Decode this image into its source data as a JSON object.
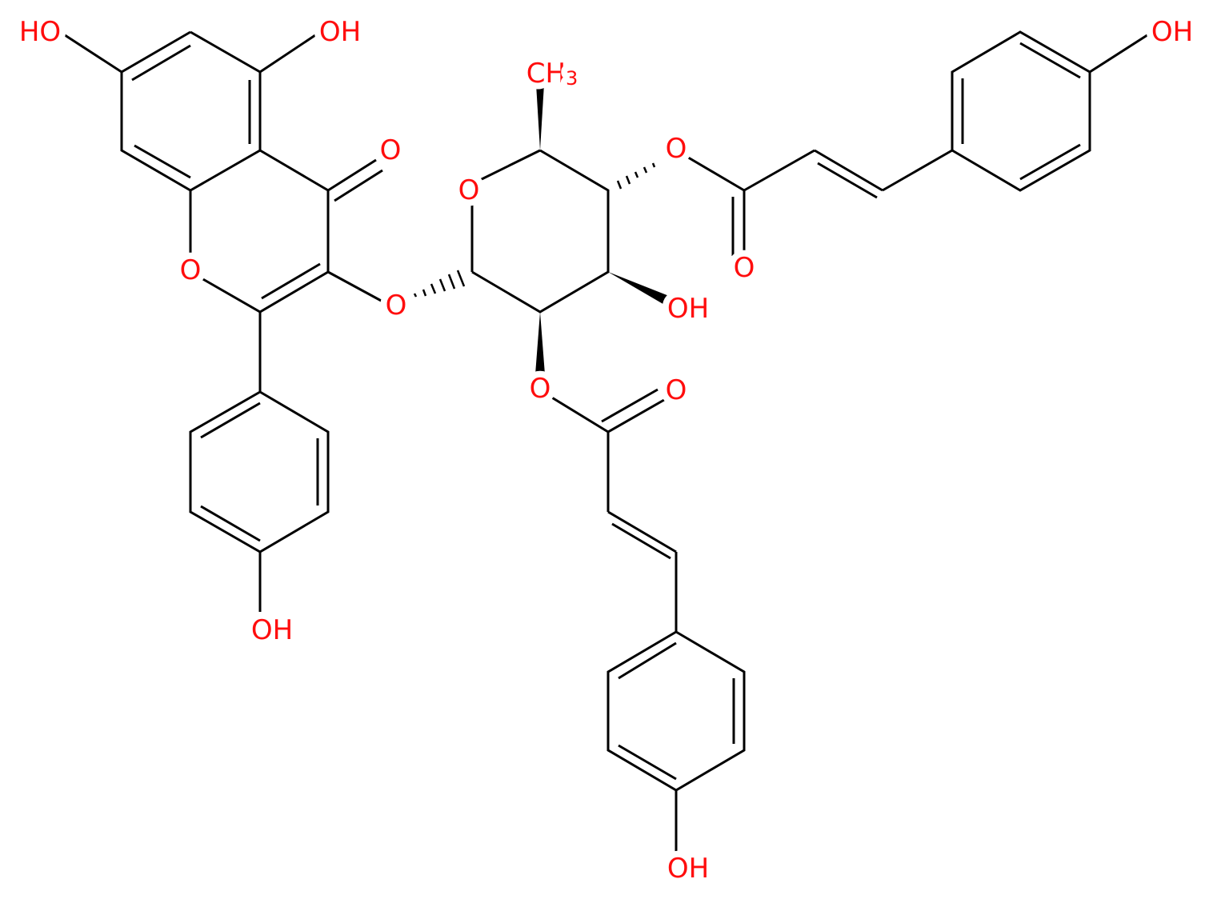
{
  "atom_labels": [
    "HO",
    "OH",
    "O",
    "O",
    "O",
    "O",
    {
      "text": "CH",
      "subscript": "3"
    },
    "O",
    "O",
    "OH",
    "O",
    "O",
    "OH",
    "OH",
    "OH"
  ]
}
